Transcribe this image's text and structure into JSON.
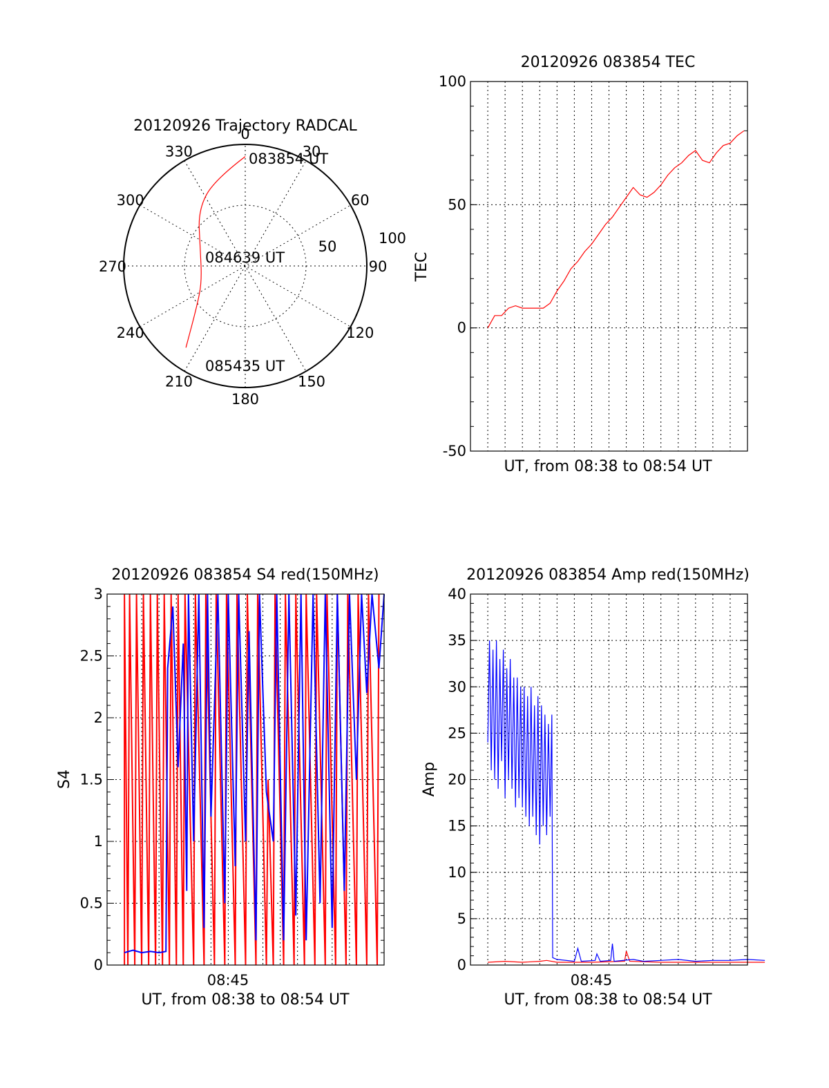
{
  "chart_data": [
    {
      "type": "polar",
      "title": "20120926 Trajectory RADCAL",
      "azimuth_labels": [
        "0",
        "30",
        "60",
        "90",
        "120",
        "150",
        "180",
        "210",
        "240",
        "270",
        "300",
        "330"
      ],
      "radial_labels": [
        "50",
        "100"
      ],
      "point_labels": {
        "start": "083854 UT",
        "middle": "084639 UT",
        "end": "085435 UT"
      },
      "trajectory": [
        {
          "az": 0,
          "r": 90
        },
        {
          "az": 340,
          "r": 75
        },
        {
          "az": 320,
          "r": 60
        },
        {
          "az": 292,
          "r": 40
        },
        {
          "az": 250,
          "r": 38
        },
        {
          "az": 230,
          "r": 52
        },
        {
          "az": 216,
          "r": 83
        }
      ],
      "color": "#ff0000"
    },
    {
      "type": "line",
      "title": "20120926 083854 TEC",
      "xlabel": "UT, from 08:38 to 08:54 UT",
      "ylabel": "TEC",
      "ylim": [
        -50,
        100
      ],
      "yticks": [
        "-50",
        "0",
        "50",
        "100"
      ],
      "xlim": [
        0,
        16
      ],
      "series": [
        {
          "color": "#ff0000",
          "points": [
            [
              0,
              0
            ],
            [
              0.4,
              5
            ],
            [
              0.8,
              5
            ],
            [
              1.2,
              8
            ],
            [
              1.6,
              9
            ],
            [
              2.0,
              8
            ],
            [
              2.4,
              8
            ],
            [
              2.8,
              8
            ],
            [
              3.2,
              8
            ],
            [
              3.6,
              10
            ],
            [
              4.0,
              15
            ],
            [
              4.4,
              19
            ],
            [
              4.8,
              24
            ],
            [
              5.2,
              27
            ],
            [
              5.6,
              31
            ],
            [
              6.0,
              34
            ],
            [
              6.4,
              38
            ],
            [
              6.8,
              42
            ],
            [
              7.2,
              45
            ],
            [
              7.6,
              49
            ],
            [
              8.0,
              53
            ],
            [
              8.4,
              57
            ],
            [
              8.8,
              54
            ],
            [
              9.2,
              53
            ],
            [
              9.6,
              55
            ],
            [
              10.0,
              58
            ],
            [
              10.4,
              62
            ],
            [
              10.8,
              65
            ],
            [
              11.2,
              67
            ],
            [
              11.6,
              70
            ],
            [
              12.0,
              72
            ],
            [
              12.4,
              68
            ],
            [
              12.8,
              67
            ],
            [
              13.2,
              71
            ],
            [
              13.6,
              74
            ],
            [
              14.0,
              75
            ],
            [
              14.4,
              78
            ],
            [
              14.8,
              80
            ]
          ]
        }
      ]
    },
    {
      "type": "line",
      "title": "20120926 083854 S4 red(150MHz)",
      "xlabel": "UT, from 08:38 to 08:54 UT",
      "ylabel": "S4",
      "ylim": [
        0,
        3
      ],
      "yticks": [
        "0",
        "0.5",
        "1",
        "1.5",
        "2",
        "2.5",
        "3"
      ],
      "xlim": [
        0,
        16
      ],
      "xtick_label": "08:45",
      "series": [
        {
          "color": "#ff0000",
          "points": [
            [
              1.0,
              0
            ],
            [
              1.0,
              3
            ],
            [
              1.2,
              0
            ],
            [
              1.3,
              3
            ],
            [
              1.6,
              0
            ],
            [
              1.7,
              3
            ],
            [
              2.0,
              0
            ],
            [
              2.1,
              3
            ],
            [
              2.4,
              0
            ],
            [
              2.5,
              3
            ],
            [
              2.8,
              0
            ],
            [
              2.9,
              3
            ],
            [
              3.2,
              0
            ],
            [
              3.3,
              3
            ],
            [
              3.6,
              0
            ],
            [
              3.7,
              3
            ],
            [
              4.0,
              0
            ],
            [
              4.1,
              3
            ],
            [
              4.4,
              0
            ],
            [
              4.5,
              3
            ],
            [
              5.0,
              0
            ],
            [
              5.1,
              3
            ],
            [
              5.6,
              0
            ],
            [
              5.7,
              3
            ],
            [
              6.2,
              0
            ],
            [
              6.3,
              3
            ],
            [
              6.8,
              0
            ],
            [
              6.9,
              3
            ],
            [
              7.4,
              0
            ],
            [
              7.5,
              3
            ],
            [
              8.0,
              0
            ],
            [
              8.1,
              3
            ],
            [
              8.6,
              0
            ],
            [
              8.7,
              3
            ],
            [
              9.2,
              0
            ],
            [
              9.3,
              1.5
            ],
            [
              9.6,
              0
            ],
            [
              9.7,
              3
            ],
            [
              10.2,
              0
            ],
            [
              10.3,
              3
            ],
            [
              10.8,
              0
            ],
            [
              10.9,
              3
            ],
            [
              11.4,
              0
            ],
            [
              11.5,
              3
            ],
            [
              12.0,
              0
            ],
            [
              12.1,
              3
            ],
            [
              12.6,
              0
            ],
            [
              12.7,
              3
            ],
            [
              13.2,
              0
            ],
            [
              13.3,
              3
            ],
            [
              13.8,
              0
            ],
            [
              13.9,
              3
            ],
            [
              14.4,
              0
            ],
            [
              14.5,
              3
            ],
            [
              15.0,
              0
            ],
            [
              15.1,
              3
            ],
            [
              15.6,
              0
            ],
            [
              15.7,
              3
            ]
          ]
        },
        {
          "color": "#0000ff",
          "points": [
            [
              1.0,
              0.1
            ],
            [
              1.5,
              0.12
            ],
            [
              2.0,
              0.1
            ],
            [
              2.5,
              0.11
            ],
            [
              3.0,
              0.1
            ],
            [
              3.4,
              0.11
            ],
            [
              3.5,
              2.4
            ],
            [
              3.8,
              2.9
            ],
            [
              4.1,
              1.6
            ],
            [
              4.4,
              2.6
            ],
            [
              4.6,
              0.6
            ],
            [
              4.7,
              3
            ],
            [
              5.0,
              1.0
            ],
            [
              5.3,
              3
            ],
            [
              5.6,
              0.3
            ],
            [
              5.8,
              3
            ],
            [
              6.0,
              1.2
            ],
            [
              6.4,
              3
            ],
            [
              6.8,
              0.5
            ],
            [
              7.0,
              3
            ],
            [
              7.4,
              0.8
            ],
            [
              7.6,
              3
            ],
            [
              8.0,
              1.0
            ],
            [
              8.2,
              2.7
            ],
            [
              8.6,
              0.2
            ],
            [
              8.8,
              3
            ],
            [
              9.2,
              1.4
            ],
            [
              9.6,
              1.0
            ],
            [
              9.8,
              3
            ],
            [
              10.2,
              0.2
            ],
            [
              10.5,
              3
            ],
            [
              10.9,
              0.4
            ],
            [
              11.2,
              3
            ],
            [
              11.5,
              0.2
            ],
            [
              11.9,
              3
            ],
            [
              12.3,
              0.5
            ],
            [
              12.6,
              3
            ],
            [
              13.0,
              0.3
            ],
            [
              13.3,
              3
            ],
            [
              13.7,
              0.6
            ],
            [
              14.0,
              3
            ],
            [
              14.4,
              1.5
            ],
            [
              14.7,
              3
            ],
            [
              15.0,
              2.2
            ],
            [
              15.3,
              3
            ],
            [
              15.7,
              2.4
            ],
            [
              16.0,
              3
            ]
          ]
        }
      ]
    },
    {
      "type": "line",
      "title": "20120926 083854 Amp red(150MHz)",
      "xlabel": "UT, from 08:38 to 08:54 UT",
      "ylabel": "Amp",
      "ylim": [
        0,
        40
      ],
      "yticks": [
        "0",
        "5",
        "10",
        "15",
        "20",
        "25",
        "30",
        "35",
        "40"
      ],
      "xlim": [
        0,
        16
      ],
      "xtick_label": "08:45",
      "series": [
        {
          "color": "#ff0000",
          "points": [
            [
              0,
              0.3
            ],
            [
              1,
              0.4
            ],
            [
              2,
              0.3
            ],
            [
              3,
              0.4
            ],
            [
              3.4,
              0.5
            ],
            [
              4,
              0.3
            ],
            [
              6,
              0.3
            ],
            [
              7.9,
              0.4
            ],
            [
              8.0,
              1.5
            ],
            [
              8.2,
              0.4
            ],
            [
              10,
              0.3
            ],
            [
              12,
              0.3
            ],
            [
              14,
              0.3
            ],
            [
              16,
              0.3
            ]
          ]
        },
        {
          "color": "#0000ff",
          "points": [
            [
              0,
              24
            ],
            [
              0.1,
              35
            ],
            [
              0.2,
              21
            ],
            [
              0.3,
              34
            ],
            [
              0.4,
              20
            ],
            [
              0.5,
              35
            ],
            [
              0.6,
              19
            ],
            [
              0.7,
              33
            ],
            [
              0.8,
              22
            ],
            [
              0.9,
              34
            ],
            [
              1.0,
              18
            ],
            [
              1.1,
              32
            ],
            [
              1.2,
              20
            ],
            [
              1.3,
              33
            ],
            [
              1.4,
              19
            ],
            [
              1.5,
              31
            ],
            [
              1.6,
              17
            ],
            [
              1.7,
              31
            ],
            [
              1.8,
              18
            ],
            [
              1.9,
              30
            ],
            [
              2.0,
              17
            ],
            [
              2.1,
              30
            ],
            [
              2.2,
              16
            ],
            [
              2.3,
              29
            ],
            [
              2.4,
              15
            ],
            [
              2.5,
              30
            ],
            [
              2.6,
              16
            ],
            [
              2.7,
              28
            ],
            [
              2.8,
              14
            ],
            [
              2.9,
              29
            ],
            [
              3.0,
              13
            ],
            [
              3.1,
              28
            ],
            [
              3.2,
              15
            ],
            [
              3.3,
              27
            ],
            [
              3.4,
              14
            ],
            [
              3.5,
              26
            ],
            [
              3.6,
              16
            ],
            [
              3.7,
              27
            ],
            [
              3.75,
              0.8
            ],
            [
              4.0,
              0.6
            ],
            [
              5.0,
              0.4
            ],
            [
              5.2,
              1.8
            ],
            [
              5.4,
              0.4
            ],
            [
              6.2,
              0.5
            ],
            [
              6.3,
              1.2
            ],
            [
              6.5,
              0.4
            ],
            [
              7.1,
              0.5
            ],
            [
              7.2,
              2.3
            ],
            [
              7.3,
              0.4
            ],
            [
              8.4,
              0.6
            ],
            [
              9.0,
              0.4
            ],
            [
              10.0,
              0.5
            ],
            [
              11.0,
              0.6
            ],
            [
              12.0,
              0.4
            ],
            [
              13.0,
              0.5
            ],
            [
              14.0,
              0.5
            ],
            [
              15.0,
              0.6
            ],
            [
              16.0,
              0.5
            ]
          ]
        }
      ]
    }
  ]
}
